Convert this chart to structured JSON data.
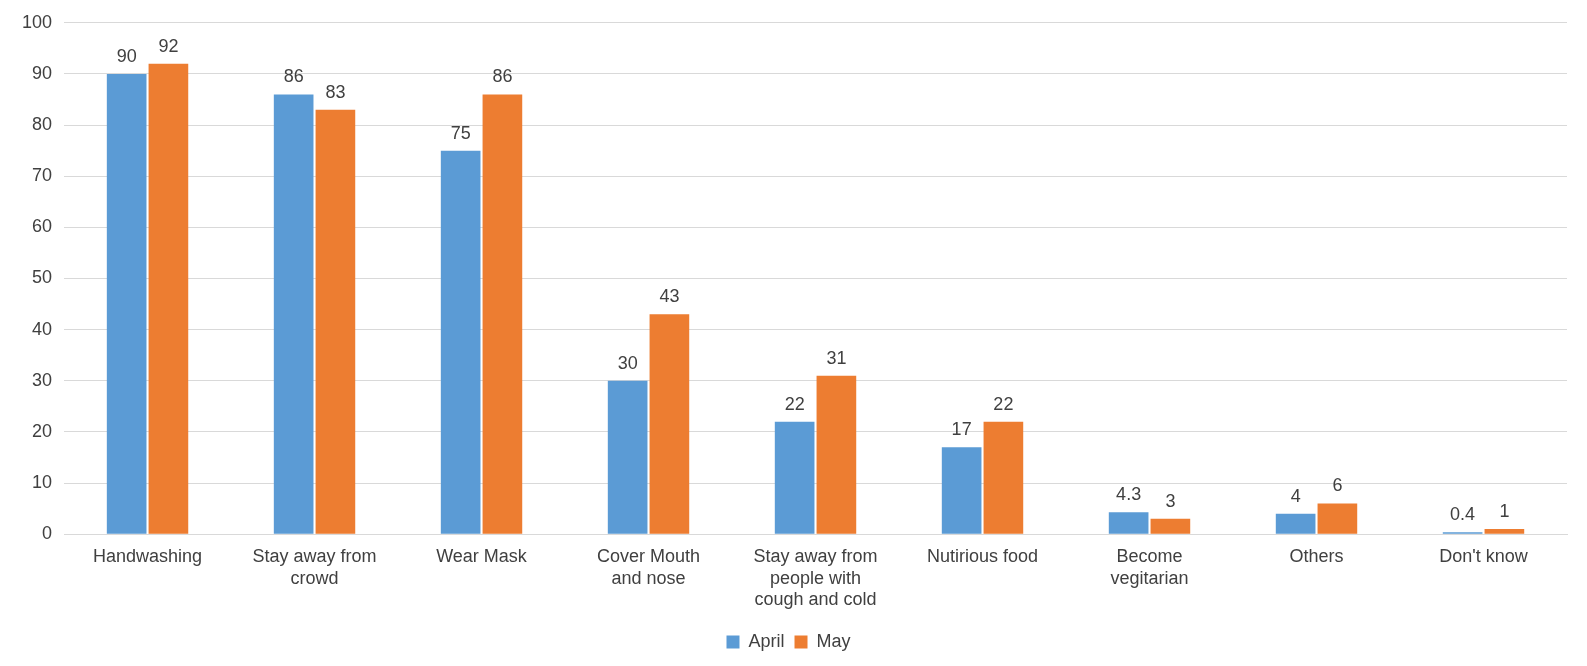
{
  "chart_data": {
    "type": "bar",
    "categories": [
      "Handwashing",
      "Stay away from crowd",
      "Wear Mask",
      "Cover Mouth and nose",
      "Stay away from people with cough and cold",
      "Nutirious food",
      "Become vegitarian",
      "Others",
      "Don't know"
    ],
    "series": [
      {
        "name": "April",
        "color": "#5b9bd5",
        "values": [
          90,
          86,
          75,
          30,
          22,
          17,
          4.3,
          4,
          0.4
        ]
      },
      {
        "name": "May",
        "color": "#ed7d31",
        "values": [
          92,
          83,
          86,
          43,
          31,
          22,
          3,
          6,
          1
        ]
      }
    ],
    "ylim": [
      0,
      100
    ],
    "yticks": [
      0,
      10,
      20,
      30,
      40,
      50,
      60,
      70,
      80,
      90,
      100
    ],
    "grid": "y",
    "legend": "bottom",
    "data_labels": true
  }
}
